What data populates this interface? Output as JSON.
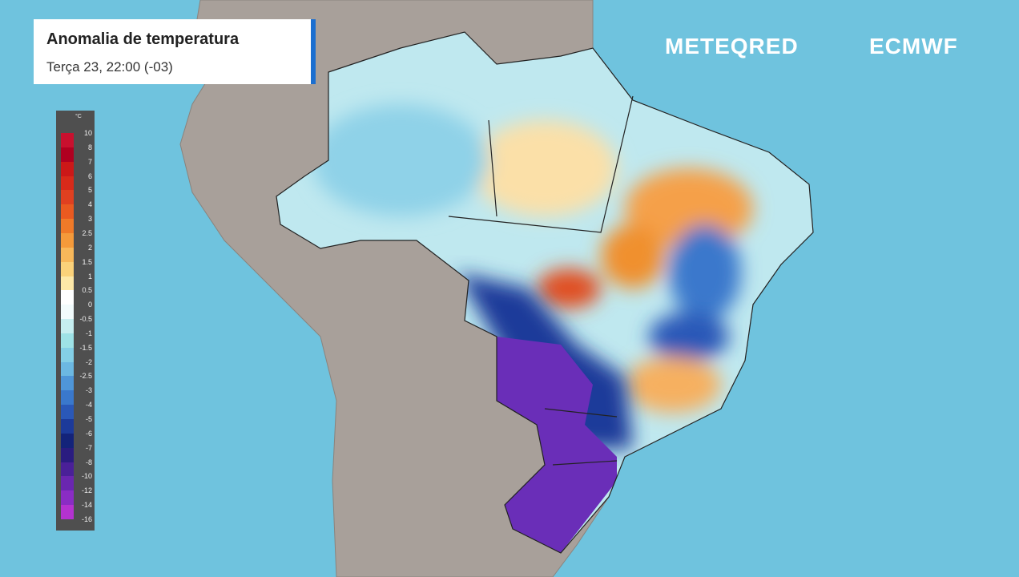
{
  "header": {
    "title": "Anomalia de temperatura",
    "subtitle": "Terça 23, 22:00 (-03)"
  },
  "brand": {
    "meteored": "METEQRED",
    "ecmwf": "ECMWF"
  },
  "legend": {
    "unit": "°C",
    "ticks": [
      10,
      8,
      7,
      6,
      5,
      4,
      3,
      2.5,
      2,
      1.5,
      1,
      0.5,
      0,
      -0.5,
      -1,
      -1.5,
      -2,
      -2.5,
      -3,
      -4,
      -5,
      -6,
      -7,
      -8,
      -10,
      -12,
      -14,
      -16
    ],
    "colors": [
      "#c8102e",
      "#b00020",
      "#cc1818",
      "#d82a1a",
      "#e04020",
      "#ea5a20",
      "#f07a28",
      "#f59a3a",
      "#f8b85a",
      "#fbd27a",
      "#fde8a8",
      "#ffffff",
      "#f2fbfc",
      "#c6eef0",
      "#9ee2e6",
      "#84cfe6",
      "#6cb8e2",
      "#4f96d8",
      "#3a78cc",
      "#2a58b8",
      "#1c3a9a",
      "#13237a",
      "#2a1c80",
      "#4a2098",
      "#6a26b0",
      "#8a2cc4",
      "#b432d0"
    ]
  }
}
